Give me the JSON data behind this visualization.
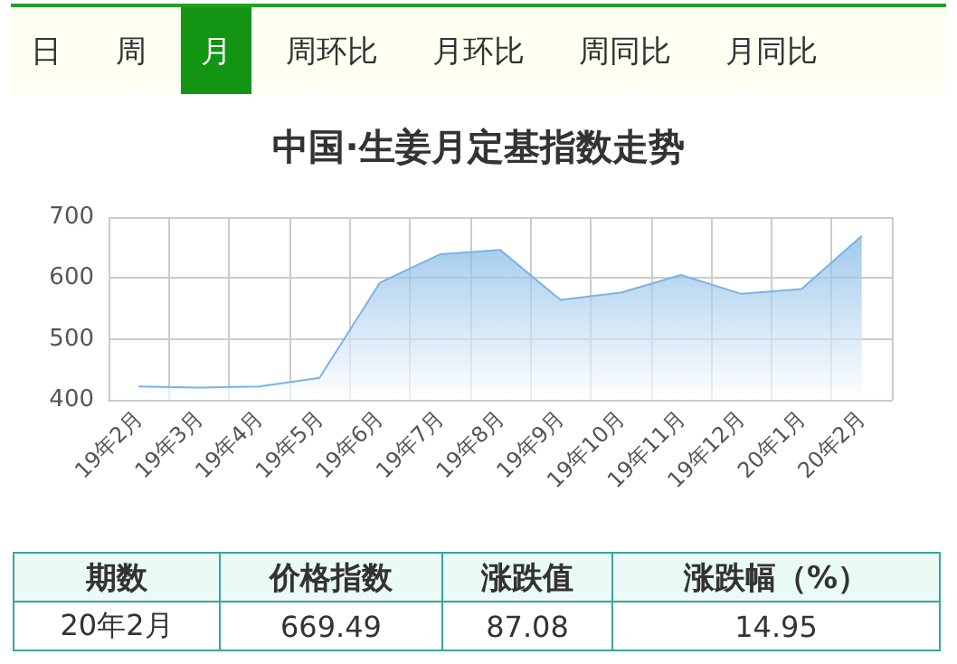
{
  "chart_data": {
    "type": "area",
    "title": "中国·生姜月定基指数走势",
    "categories": [
      "19年2月",
      "19年3月",
      "19年4月",
      "19年5月",
      "19年6月",
      "19年7月",
      "19年8月",
      "19年9月",
      "19年10月",
      "19年11月",
      "19年12月",
      "20年1月",
      "20年2月"
    ],
    "series": [
      {
        "color": "#7ab3e5",
        "values": [
          422,
          420,
          422,
          436,
          592,
          639,
          646,
          564,
          576,
          605,
          574,
          582,
          669
        ]
      }
    ],
    "ylim": [
      400,
      700
    ],
    "yticks": [
      400,
      500,
      600,
      700
    ],
    "grid": true,
    "annotations": [
      "日",
      "周",
      "月",
      "周环比",
      "月环比",
      "周同比",
      "月同比",
      "期数",
      "价格指数",
      "涨跌值",
      "涨跌幅（%）",
      "20年2月",
      "669.49",
      "87.08",
      "14.95"
    ]
  }
}
